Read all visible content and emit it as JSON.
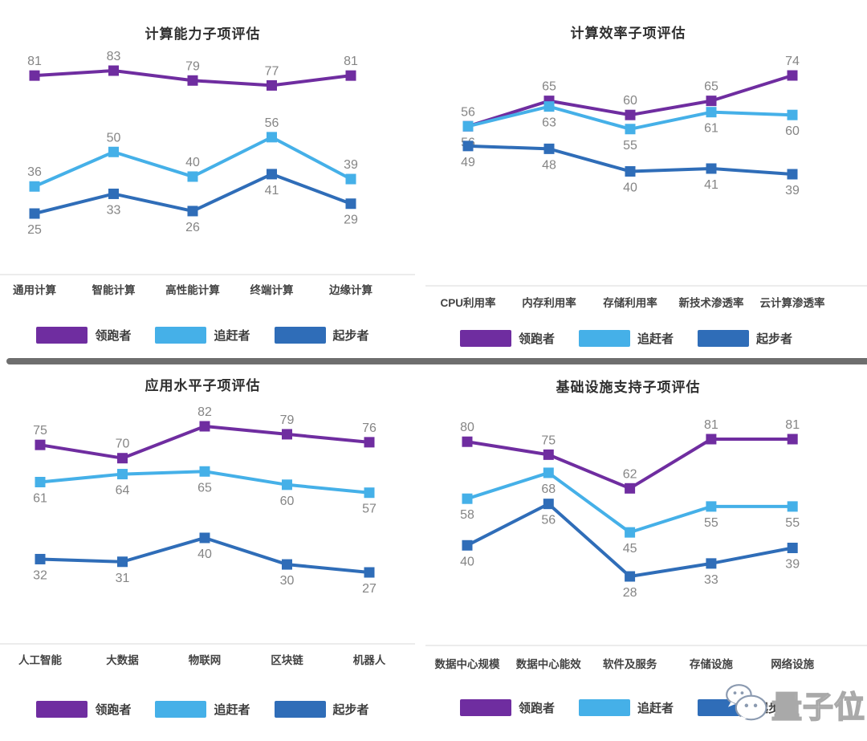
{
  "page_background": "#ffffff",
  "divider_color": "#6e6e6e",
  "styles": {
    "value_label_color": "#858585",
    "category_label_color": "#434343",
    "axis_line_color": "#d8d8d8"
  },
  "watermark": {
    "text": "量子位",
    "icon": "wechat-icon",
    "outline_color": "#8b9ab0"
  },
  "legend_labels": [
    "领跑者",
    "追赶者",
    "起步者"
  ],
  "series_colors": [
    "#6f2da0",
    "#45b0e8",
    "#2f6db8"
  ],
  "chart_data": [
    {
      "type": "line",
      "title": "计算能力子项评估",
      "categories": [
        "通用计算",
        "智能计算",
        "高性能计算",
        "终端计算",
        "边缘计算"
      ],
      "series": [
        {
          "name": "领跑者",
          "color": "#6f2da0",
          "values": [
            81,
            83,
            79,
            77,
            81
          ],
          "label_pos": "above"
        },
        {
          "name": "追赶者",
          "color": "#45b0e8",
          "values": [
            36,
            50,
            40,
            56,
            39
          ],
          "label_pos": "above"
        },
        {
          "name": "起步者",
          "color": "#2f6db8",
          "values": [
            25,
            33,
            26,
            41,
            29
          ],
          "label_pos": "below"
        }
      ],
      "value_labels": true,
      "grid": false,
      "legend_position": "bottom",
      "ylim": [
        25,
        83
      ]
    },
    {
      "type": "line",
      "title": "计算效率子项评估",
      "categories": [
        "CPU利用率",
        "内存利用率",
        "存储利用率",
        "新技术渗透率",
        "云计算渗透率"
      ],
      "series": [
        {
          "name": "领跑者",
          "color": "#6f2da0",
          "values": [
            56,
            65,
            60,
            65,
            74
          ],
          "label_pos": "above"
        },
        {
          "name": "追赶者",
          "color": "#45b0e8",
          "values": [
            56,
            63,
            55,
            61,
            60
          ],
          "label_pos": "below"
        },
        {
          "name": "起步者",
          "color": "#2f6db8",
          "values": [
            49,
            48,
            40,
            41,
            39
          ],
          "label_pos": "below"
        }
      ],
      "value_labels": true,
      "grid": false,
      "legend_position": "bottom",
      "ylim": [
        39,
        74
      ]
    },
    {
      "type": "line",
      "title": "应用水平子项评估",
      "categories": [
        "人工智能",
        "大数据",
        "物联网",
        "区块链",
        "机器人"
      ],
      "series": [
        {
          "name": "领跑者",
          "color": "#6f2da0",
          "values": [
            75,
            70,
            82,
            79,
            76
          ],
          "label_pos": "above"
        },
        {
          "name": "追赶者",
          "color": "#45b0e8",
          "values": [
            61,
            64,
            65,
            60,
            57
          ],
          "label_pos": "below"
        },
        {
          "name": "起步者",
          "color": "#2f6db8",
          "values": [
            32,
            31,
            40,
            30,
            27
          ],
          "label_pos": "below"
        }
      ],
      "value_labels": true,
      "grid": false,
      "legend_position": "bottom",
      "ylim": [
        27,
        82
      ]
    },
    {
      "type": "line",
      "title": "基础设施支持子项评估",
      "categories": [
        "数据中心规模",
        "数据中心能效",
        "软件及服务",
        "存储设施",
        "网络设施"
      ],
      "series": [
        {
          "name": "领跑者",
          "color": "#6f2da0",
          "values": [
            80,
            75,
            62,
            81,
            81
          ],
          "label_pos": "above"
        },
        {
          "name": "追赶者",
          "color": "#45b0e8",
          "values": [
            58,
            68,
            45,
            55,
            55
          ],
          "label_pos": "below"
        },
        {
          "name": "起步者",
          "color": "#2f6db8",
          "values": [
            40,
            56,
            28,
            33,
            39
          ],
          "label_pos": "below"
        }
      ],
      "value_labels": true,
      "grid": false,
      "legend_position": "bottom",
      "ylim": [
        28,
        81
      ]
    }
  ]
}
